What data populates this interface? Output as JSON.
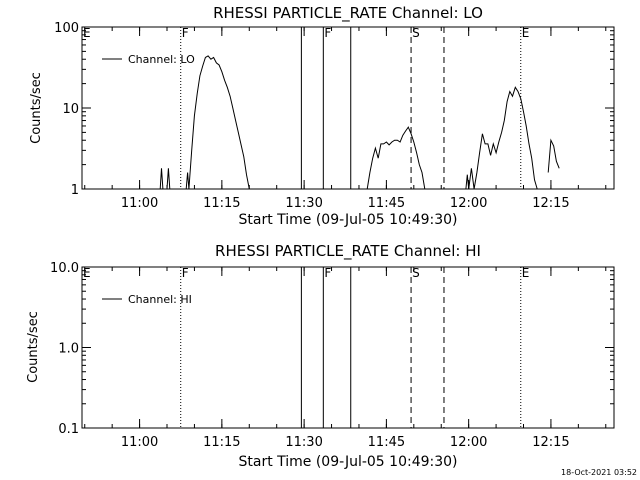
{
  "footer": {
    "timestamp": "18-Oct-2021 03:52"
  },
  "chart_data": [
    {
      "type": "line",
      "title": "RHESSI PARTICLE_RATE Channel: LO",
      "xlabel": "Start Time (09-Jul-05 10:49:30)",
      "ylabel": "Counts/sec",
      "y_scale": "log",
      "xlim": [
        "10:49:30",
        "12:26:30"
      ],
      "ylim": [
        1,
        100
      ],
      "x_ticks": [
        "11:00",
        "11:15",
        "11:30",
        "11:45",
        "12:00",
        "12:15"
      ],
      "y_ticks": [
        "1",
        "10",
        "100"
      ],
      "legend": {
        "position": "top-left",
        "entries": [
          "Channel: LO"
        ]
      },
      "markers": [
        {
          "label": "E",
          "time": "10:49:30",
          "style": "none"
        },
        {
          "label": "F",
          "time": "11:07:30",
          "style": "dotted"
        },
        {
          "label": "",
          "time": "11:29:30",
          "style": "solid"
        },
        {
          "label": "F",
          "time": "11:33:30",
          "style": "solid"
        },
        {
          "label": "",
          "time": "11:38:30",
          "style": "solid"
        },
        {
          "label": "S",
          "time": "11:49:30",
          "style": "dashed"
        },
        {
          "label": "",
          "time": "11:55:30",
          "style": "dashed"
        },
        {
          "label": "E",
          "time": "12:09:30",
          "style": "dotted"
        },
        {
          "label": "",
          "time": "12:26:30",
          "style": "dotted"
        }
      ],
      "series": [
        {
          "name": "Channel: LO",
          "segments": [
            [
              [
                "11:03:45",
                1.0
              ],
              [
                "11:04:00",
                1.8
              ],
              [
                "11:04:15",
                1.0
              ]
            ],
            [
              [
                "11:05:00",
                1.0
              ],
              [
                "11:05:15",
                1.8
              ],
              [
                "11:05:30",
                1.0
              ]
            ],
            [
              [
                "11:08:30",
                1.0
              ],
              [
                "11:08:45",
                1.6
              ],
              [
                "11:09:00",
                1.0
              ],
              [
                "11:09:30",
                3
              ],
              [
                "11:10:00",
                8
              ],
              [
                "11:10:30",
                15
              ],
              [
                "11:11:00",
                25
              ],
              [
                "11:11:30",
                33
              ],
              [
                "11:12:00",
                42
              ],
              [
                "11:12:30",
                44
              ],
              [
                "11:13:00",
                40
              ],
              [
                "11:13:30",
                42
              ],
              [
                "11:14:00",
                36
              ],
              [
                "11:14:30",
                34
              ],
              [
                "11:15:00",
                28
              ],
              [
                "11:15:30",
                22
              ],
              [
                "11:16:00",
                18
              ],
              [
                "11:16:30",
                14
              ],
              [
                "11:17:00",
                10
              ],
              [
                "11:17:30",
                7
              ],
              [
                "11:18:00",
                5
              ],
              [
                "11:18:30",
                3.5
              ],
              [
                "11:19:00",
                2.5
              ],
              [
                "11:19:30",
                1.5
              ],
              [
                "11:20:00",
                1.0
              ]
            ],
            [
              [
                "11:41:30",
                1.0
              ],
              [
                "11:42:00",
                1.6
              ],
              [
                "11:42:30",
                2.4
              ],
              [
                "11:43:00",
                3.2
              ],
              [
                "11:43:30",
                2.4
              ],
              [
                "11:44:00",
                3.6
              ],
              [
                "11:44:30",
                3.6
              ],
              [
                "11:45:00",
                3.8
              ],
              [
                "11:45:30",
                3.5
              ],
              [
                "11:46:00",
                3.8
              ],
              [
                "11:46:30",
                4.0
              ],
              [
                "11:47:00",
                4.0
              ],
              [
                "11:47:30",
                3.8
              ],
              [
                "11:48:00",
                4.6
              ],
              [
                "11:48:30",
                5.2
              ],
              [
                "11:49:00",
                5.8
              ],
              [
                "11:49:30",
                4.8
              ],
              [
                "11:50:00",
                3.8
              ],
              [
                "11:50:30",
                2.8
              ],
              [
                "11:51:00",
                2.0
              ],
              [
                "11:51:30",
                1.6
              ],
              [
                "11:52:00",
                1.0
              ]
            ],
            [
              [
                "11:59:30",
                1.0
              ],
              [
                "11:59:45",
                1.5
              ],
              [
                "12:00:00",
                1.0
              ],
              [
                "12:00:30",
                1.8
              ],
              [
                "12:01:00",
                1.0
              ],
              [
                "12:01:30",
                1.6
              ],
              [
                "12:02:00",
                2.8
              ],
              [
                "12:02:30",
                4.8
              ],
              [
                "12:03:00",
                3.6
              ],
              [
                "12:03:30",
                3.6
              ],
              [
                "12:04:00",
                2.6
              ],
              [
                "12:04:30",
                3.6
              ],
              [
                "12:05:00",
                2.8
              ],
              [
                "12:05:30",
                3.8
              ],
              [
                "12:06:00",
                5.0
              ],
              [
                "12:06:30",
                7.0
              ],
              [
                "12:07:00",
                12
              ],
              [
                "12:07:30",
                16
              ],
              [
                "12:08:00",
                14
              ],
              [
                "12:08:30",
                18
              ],
              [
                "12:09:00",
                16
              ],
              [
                "12:09:30",
                13
              ],
              [
                "12:10:00",
                9
              ],
              [
                "12:10:30",
                6
              ],
              [
                "12:11:00",
                3.6
              ],
              [
                "12:11:30",
                2.4
              ],
              [
                "12:12:00",
                1.3
              ],
              [
                "12:12:30",
                1.0
              ]
            ],
            [
              [
                "12:14:30",
                1.6
              ],
              [
                "12:15:00",
                4.0
              ],
              [
                "12:15:30",
                3.4
              ],
              [
                "12:16:00",
                2.2
              ],
              [
                "12:16:30",
                1.8
              ]
            ]
          ]
        }
      ]
    },
    {
      "type": "line",
      "title": "RHESSI PARTICLE_RATE Channel: HI",
      "xlabel": "Start Time (09-Jul-05 10:49:30)",
      "ylabel": "Counts/sec",
      "y_scale": "log",
      "xlim": [
        "10:49:30",
        "12:26:30"
      ],
      "ylim": [
        0.1,
        10
      ],
      "x_ticks": [
        "11:00",
        "11:15",
        "11:30",
        "11:45",
        "12:00",
        "12:15"
      ],
      "y_ticks": [
        "0.1",
        "1.0",
        "10.0"
      ],
      "legend": {
        "position": "top-left",
        "entries": [
          "Channel: HI"
        ]
      },
      "markers": [
        {
          "label": "E",
          "time": "10:49:30",
          "style": "none"
        },
        {
          "label": "F",
          "time": "11:07:30",
          "style": "dotted"
        },
        {
          "label": "",
          "time": "11:29:30",
          "style": "solid"
        },
        {
          "label": "F",
          "time": "11:33:30",
          "style": "solid"
        },
        {
          "label": "",
          "time": "11:38:30",
          "style": "solid"
        },
        {
          "label": "S",
          "time": "11:49:30",
          "style": "dashed"
        },
        {
          "label": "",
          "time": "11:55:30",
          "style": "dashed"
        },
        {
          "label": "E",
          "time": "12:09:30",
          "style": "dotted"
        },
        {
          "label": "",
          "time": "12:26:30",
          "style": "dotted"
        }
      ],
      "series": [
        {
          "name": "Channel: HI",
          "segments": []
        }
      ]
    }
  ]
}
